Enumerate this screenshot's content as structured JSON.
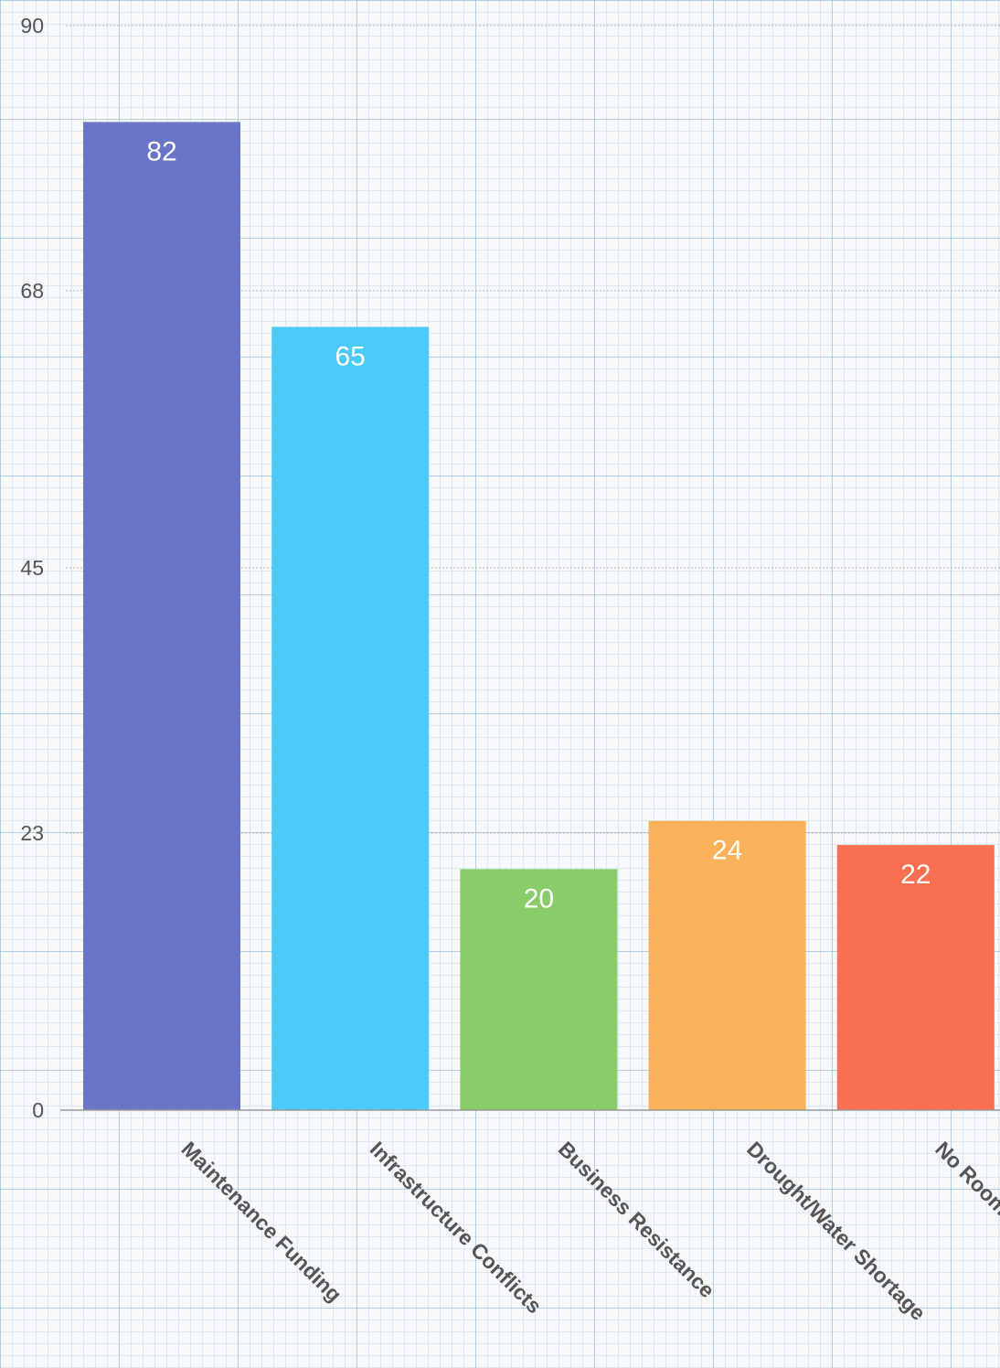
{
  "chart_data": {
    "type": "bar",
    "title": "",
    "xlabel": "",
    "ylabel": "",
    "categories": [
      "Maintenance Funding",
      "Infrastructure Conflicts",
      "Business Resistance",
      "Drought/Water Shortage",
      "No Room"
    ],
    "values": [
      82,
      65,
      20,
      24,
      22
    ],
    "colors": [
      "#6b75c8",
      "#4ccbfb",
      "#8bcc6a",
      "#f9b15a",
      "#f96f52"
    ],
    "y_ticks": [
      0,
      23,
      45,
      68,
      90
    ],
    "ylim": [
      0,
      90
    ],
    "grid": true,
    "legend": "none",
    "data_labels": true
  }
}
